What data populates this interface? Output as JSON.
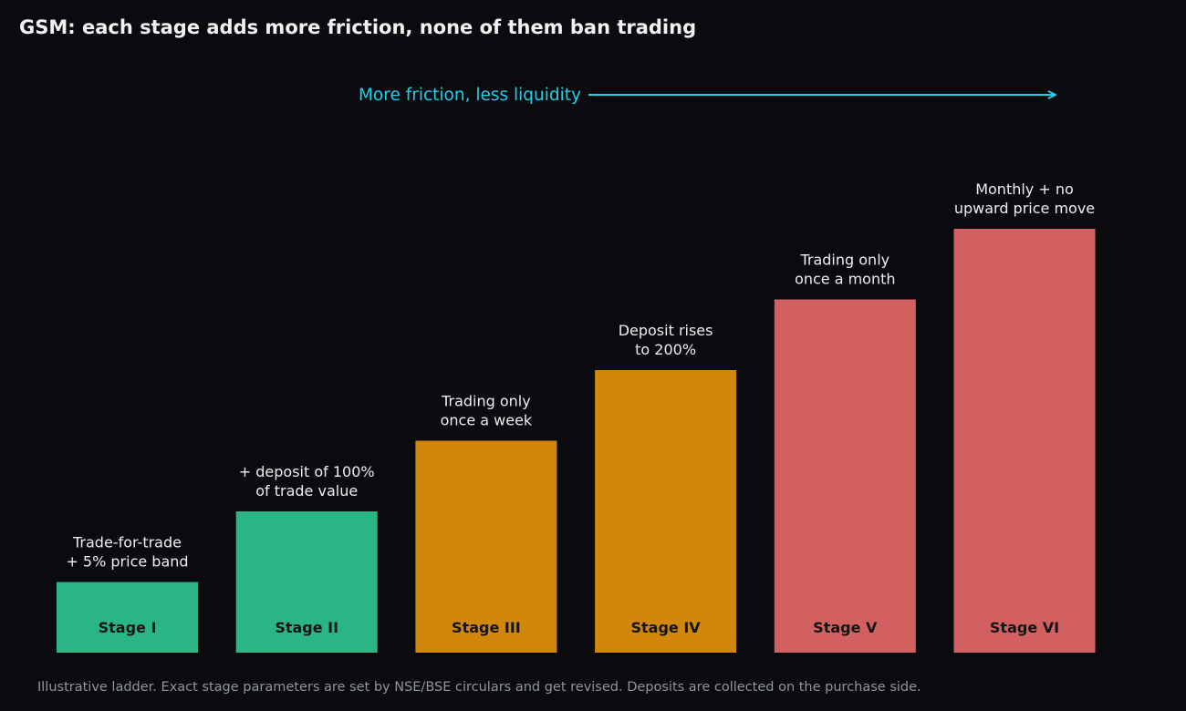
{
  "title": "GSM: each stage adds more friction, none of them ban trading",
  "footnote": "Illustrative ladder. Exact stage parameters are set by NSE/BSE circulars and get revised. Deposits are collected on the purchase side.",
  "arrow_label": "More friction, less liquidity",
  "colors": {
    "background": "#0b0a0f",
    "green": "#2bb585",
    "orange": "#d0870b",
    "red": "#d26060",
    "accent": "#22cfe8"
  },
  "chart_data": {
    "type": "bar",
    "categories": [
      "Stage I",
      "Stage II",
      "Stage III",
      "Stage IV",
      "Stage V",
      "Stage VI"
    ],
    "values": [
      1,
      2,
      3,
      4,
      5,
      6
    ],
    "bar_colors": [
      "green",
      "green",
      "orange",
      "orange",
      "red",
      "red"
    ],
    "annotations": [
      [
        "Trade-for-trade",
        "+ 5% price band"
      ],
      [
        "+ deposit of 100%",
        "of trade value"
      ],
      [
        "Trading only",
        "once a week"
      ],
      [
        "Deposit rises",
        "to 200%"
      ],
      [
        "Trading only",
        "once a month"
      ],
      [
        "Monthly + no",
        "upward price move"
      ]
    ],
    "ylim": [
      0,
      6
    ],
    "grid": false
  }
}
